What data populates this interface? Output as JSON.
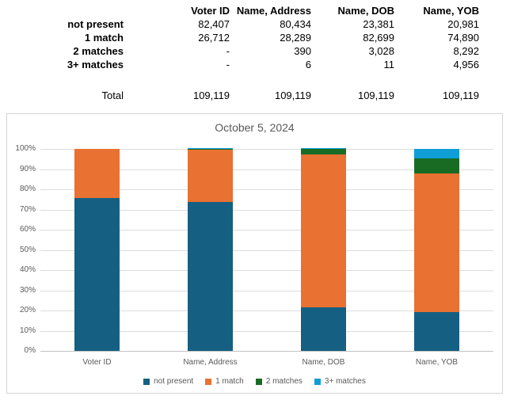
{
  "table": {
    "columns": [
      "Voter ID",
      "Name, Address",
      "Name, DOB",
      "Name, YOB"
    ],
    "rows": [
      {
        "label": "not present",
        "values": [
          "82,407",
          "80,434",
          "23,381",
          "20,981"
        ]
      },
      {
        "label": "1 match",
        "values": [
          "26,712",
          "28,289",
          "82,699",
          "74,890"
        ]
      },
      {
        "label": "2 matches",
        "values": [
          "-",
          "390",
          "3,028",
          "8,292"
        ]
      },
      {
        "label": "3+ matches",
        "values": [
          "-",
          "6",
          "11",
          "4,956"
        ]
      }
    ],
    "total_label": "Total",
    "total_values": [
      "109,119",
      "109,119",
      "109,119",
      "109,119"
    ]
  },
  "chart_data": {
    "type": "bar",
    "stacked": true,
    "percent_of_total": true,
    "title": "October 5, 2024",
    "categories": [
      "Voter ID",
      "Name, Address",
      "Name, DOB",
      "Name, YOB"
    ],
    "series": [
      {
        "name": "not present",
        "color": "#156082",
        "values": [
          82407,
          80434,
          23381,
          20981
        ]
      },
      {
        "name": "1 match",
        "color": "#E97132",
        "values": [
          26712,
          28289,
          82699,
          74890
        ]
      },
      {
        "name": "2 matches",
        "color": "#196B24",
        "values": [
          0,
          390,
          3028,
          8292
        ]
      },
      {
        "name": "3+ matches",
        "color": "#0F9ED5",
        "values": [
          0,
          6,
          11,
          4956
        ]
      }
    ],
    "column_total": 109119,
    "ylim": [
      0,
      100
    ],
    "y_ticks": [
      "0%",
      "10%",
      "20%",
      "30%",
      "40%",
      "50%",
      "60%",
      "70%",
      "80%",
      "90%",
      "100%"
    ],
    "grid": true,
    "legend_position": "bottom",
    "text_color": "#595959",
    "gridline_color": "#dcdcdc"
  }
}
